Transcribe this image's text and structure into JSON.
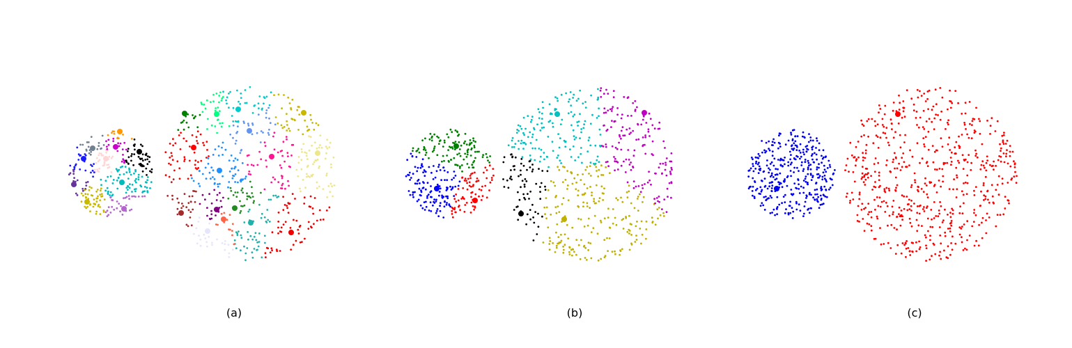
{
  "figure": {
    "panels": [
      {
        "caption": "(a)",
        "clusters": [
          {
            "ball": "small",
            "color": "#1a1aff"
          },
          {
            "ball": "small",
            "color": "#708090"
          },
          {
            "ball": "small",
            "color": "#cc00cc"
          },
          {
            "ball": "small",
            "color": "#ff9900"
          },
          {
            "ball": "small",
            "color": "#000000"
          },
          {
            "ball": "small",
            "color": "#663399"
          },
          {
            "ball": "small",
            "color": "#c8b800"
          },
          {
            "ball": "small",
            "color": "#b366cc"
          },
          {
            "ball": "small",
            "color": "#00bbbb"
          },
          {
            "ball": "small",
            "color": "#ffd6d6"
          },
          {
            "ball": "large",
            "color": "#ff0000"
          },
          {
            "ball": "large",
            "color": "#008000"
          },
          {
            "ball": "large",
            "color": "#00cccc"
          },
          {
            "ball": "large",
            "color": "#00ff80"
          },
          {
            "ball": "large",
            "color": "#c8b800"
          },
          {
            "ball": "large",
            "color": "#6495ed"
          },
          {
            "ball": "large",
            "color": "#1e90ff"
          },
          {
            "ball": "large",
            "color": "#ff1493"
          },
          {
            "ball": "large",
            "color": "#eee68c"
          },
          {
            "ball": "large",
            "color": "#228b22"
          },
          {
            "ball": "large",
            "color": "#a52a2a"
          },
          {
            "ball": "large",
            "color": "#800080"
          },
          {
            "ball": "large",
            "color": "#e6e6fa"
          },
          {
            "ball": "large",
            "color": "#ff6347"
          },
          {
            "ball": "large",
            "color": "#20b2aa"
          },
          {
            "ball": "large",
            "color": "#ee0000"
          }
        ]
      },
      {
        "caption": "(b)",
        "clusters": [
          {
            "ball": "small",
            "color": "#008000"
          },
          {
            "ball": "small",
            "color": "#0000ff"
          },
          {
            "ball": "small",
            "color": "#ff0000"
          },
          {
            "ball": "large",
            "color": "#000000"
          },
          {
            "ball": "large",
            "color": "#00c0c0"
          },
          {
            "ball": "large",
            "color": "#c000c0"
          },
          {
            "ball": "large",
            "color": "#c0b000"
          }
        ]
      },
      {
        "caption": "(c)",
        "clusters": [
          {
            "ball": "small",
            "color": "#0000ee"
          },
          {
            "ball": "large",
            "color": "#ff0000"
          }
        ]
      }
    ]
  }
}
